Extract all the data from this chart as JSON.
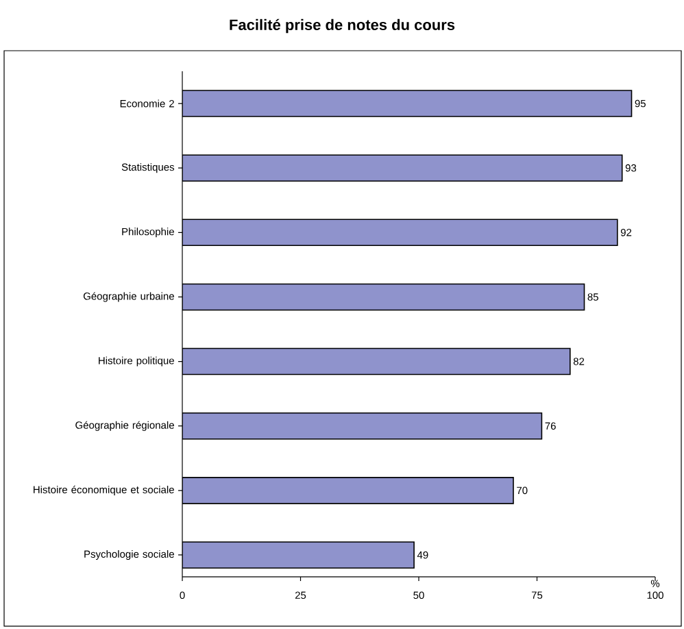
{
  "chart_data": {
    "type": "bar",
    "orientation": "horizontal",
    "title": "Facilité prise de notes du cours",
    "xlabel": "%",
    "categories": [
      "Economie 2",
      "Statistiques",
      "Philosophie",
      "Géographie urbaine",
      "Histoire politique",
      "Géographie régionale",
      "Histoire économique et sociale",
      "Psychologie sociale"
    ],
    "values": [
      95,
      93,
      92,
      85,
      82,
      76,
      70,
      49
    ],
    "color": "#8f93cc",
    "xlim": [
      0,
      100
    ],
    "xticks": [
      0,
      25,
      50,
      75,
      100
    ],
    "data_labels": true
  }
}
